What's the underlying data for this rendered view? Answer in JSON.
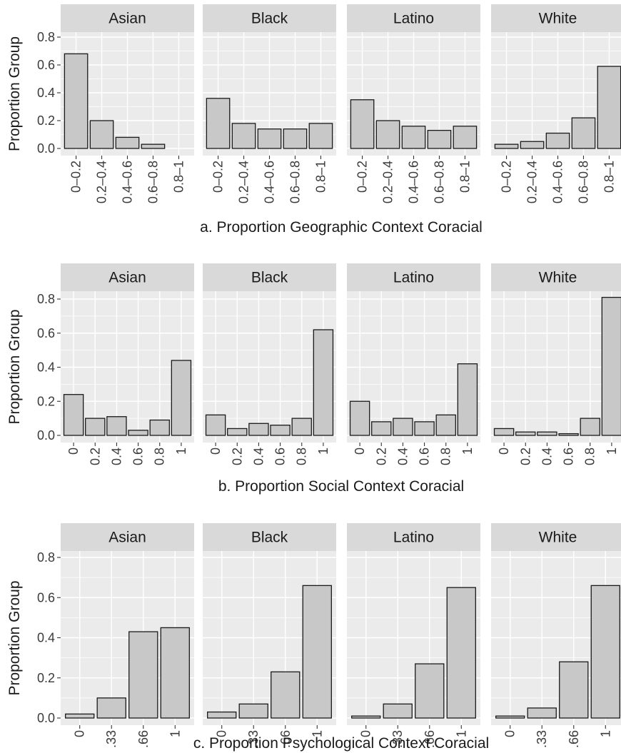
{
  "chart_data": [
    {
      "type": "bar",
      "title": "",
      "xlabel": "a. Proportion Geographic Context Coracial",
      "ylabel": "Proportion Group",
      "ylim": [
        0,
        0.85
      ],
      "yticks": [
        "0.0",
        "0.2",
        "0.4",
        "0.6",
        "0.8"
      ],
      "categories": [
        "0–0.2",
        "0.2–0.4",
        "0.4–0.6",
        "0.6–0.8",
        "0.8–1"
      ],
      "facets": [
        {
          "name": "Asian",
          "values": [
            0.68,
            0.2,
            0.08,
            0.03,
            0.0
          ]
        },
        {
          "name": "Black",
          "values": [
            0.36,
            0.18,
            0.14,
            0.14,
            0.18
          ]
        },
        {
          "name": "Latino",
          "values": [
            0.35,
            0.2,
            0.16,
            0.13,
            0.16
          ]
        },
        {
          "name": "White",
          "values": [
            0.03,
            0.05,
            0.11,
            0.22,
            0.59
          ]
        }
      ]
    },
    {
      "type": "bar",
      "title": "",
      "xlabel": "b. Proportion Social Context Coracial",
      "ylabel": "Proportion Group",
      "ylim": [
        0,
        0.85
      ],
      "yticks": [
        "0.0",
        "0.2",
        "0.4",
        "0.6",
        "0.8"
      ],
      "categories": [
        "0",
        "0.2",
        "0.4",
        "0.6",
        "0.8",
        "1"
      ],
      "facets": [
        {
          "name": "Asian",
          "values": [
            0.24,
            0.1,
            0.11,
            0.03,
            0.09,
            0.44
          ]
        },
        {
          "name": "Black",
          "values": [
            0.12,
            0.04,
            0.07,
            0.06,
            0.1,
            0.62
          ]
        },
        {
          "name": "Latino",
          "values": [
            0.2,
            0.08,
            0.1,
            0.08,
            0.12,
            0.42
          ]
        },
        {
          "name": "White",
          "values": [
            0.04,
            0.02,
            0.02,
            0.01,
            0.1,
            0.81
          ]
        }
      ]
    },
    {
      "type": "bar",
      "title": "",
      "xlabel": "c. Proportion Psychological Context Coracial",
      "ylabel": "Proportion Group",
      "ylim": [
        0,
        0.85
      ],
      "yticks": [
        "0.0",
        "0.2",
        "0.4",
        "0.6",
        "0.8"
      ],
      "categories": [
        "0",
        ".33",
        ".66",
        "1"
      ],
      "facets": [
        {
          "name": "Asian",
          "values": [
            0.02,
            0.1,
            0.43,
            0.45
          ]
        },
        {
          "name": "Black",
          "values": [
            0.03,
            0.07,
            0.23,
            0.66
          ]
        },
        {
          "name": "Latino",
          "values": [
            0.01,
            0.07,
            0.27,
            0.65
          ]
        },
        {
          "name": "White",
          "values": [
            0.01,
            0.05,
            0.28,
            0.66
          ]
        }
      ]
    }
  ]
}
